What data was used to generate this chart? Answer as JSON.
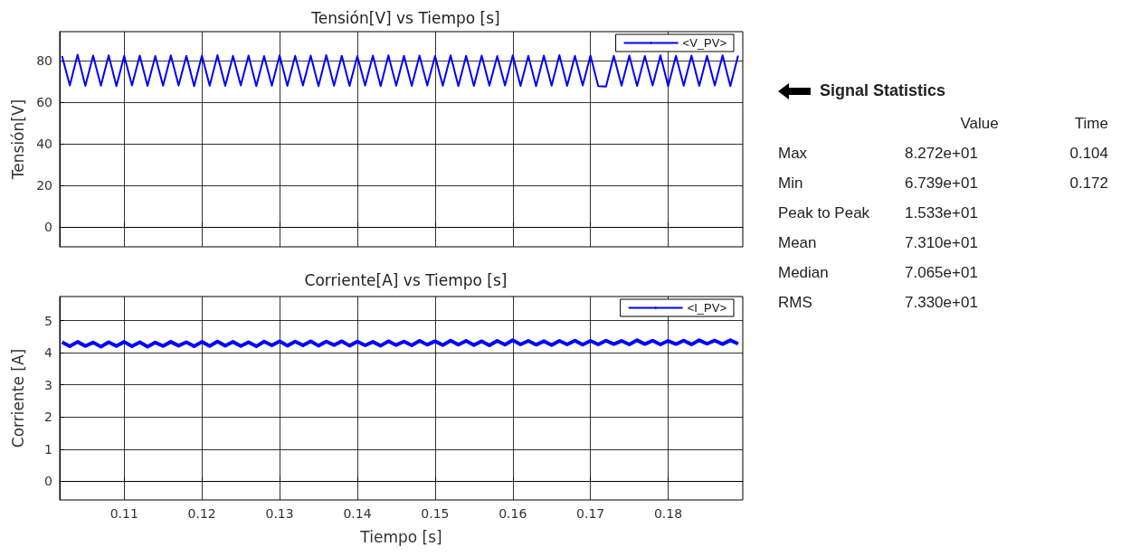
{
  "chart_data": [
    {
      "type": "line",
      "title": "Tensión[V] vs Tiempo [s]",
      "ylabel": "Tensión[V]",
      "xlim": [
        0.1017,
        0.1896
      ],
      "xticks": [
        0.11,
        0.12,
        0.13,
        0.14,
        0.15,
        0.16,
        0.17,
        0.18
      ],
      "ylim": [
        -9.6,
        93.8
      ],
      "yticks": [
        0,
        20,
        40,
        60,
        80
      ],
      "grid": true,
      "legend": "top right",
      "tick_labels": "y",
      "marker": "none",
      "x": [
        0.102,
        0.103,
        0.104,
        0.105,
        0.106,
        0.107,
        0.108,
        0.109,
        0.11,
        0.111,
        0.112,
        0.113,
        0.114,
        0.115,
        0.116,
        0.117,
        0.118,
        0.119,
        0.12,
        0.121,
        0.122,
        0.123,
        0.124,
        0.125,
        0.126,
        0.127,
        0.128,
        0.129,
        0.13,
        0.131,
        0.132,
        0.133,
        0.134,
        0.135,
        0.136,
        0.137,
        0.138,
        0.139,
        0.14,
        0.141,
        0.142,
        0.143,
        0.144,
        0.145,
        0.146,
        0.147,
        0.148,
        0.149,
        0.15,
        0.151,
        0.152,
        0.153,
        0.154,
        0.155,
        0.156,
        0.157,
        0.158,
        0.159,
        0.16,
        0.161,
        0.162,
        0.163,
        0.164,
        0.165,
        0.166,
        0.167,
        0.168,
        0.169,
        0.17,
        0.171,
        0.172,
        0.173,
        0.174,
        0.175,
        0.176,
        0.177,
        0.178,
        0.179,
        0.18,
        0.181,
        0.182,
        0.183,
        0.184,
        0.185,
        0.186,
        0.187,
        0.188,
        0.189
      ],
      "series": [
        {
          "name": "<V_PV>",
          "color": "#0000ff",
          "values": [
            82.1,
            67.9,
            82.7,
            67.7,
            82.3,
            67.8,
            82.4,
            67.6,
            82.2,
            67.9,
            82.3,
            67.7,
            82.1,
            67.8,
            82.4,
            67.9,
            82.2,
            67.6,
            82.3,
            67.8,
            82.5,
            67.7,
            82.2,
            67.9,
            82.3,
            67.6,
            82.1,
            67.8,
            82.4,
            67.7,
            82.2,
            67.9,
            82.3,
            67.6,
            82.5,
            67.8,
            82.2,
            67.7,
            82.1,
            67.9,
            82.3,
            67.6,
            82.4,
            67.8,
            82.2,
            67.7,
            82.3,
            67.9,
            82.1,
            67.8,
            82.4,
            67.6,
            82.2,
            67.7,
            82.3,
            67.8,
            82.1,
            67.9,
            82.4,
            67.7,
            82.2,
            67.6,
            82.3,
            67.8,
            82.5,
            67.7,
            82.2,
            67.9,
            82.3,
            67.6,
            67.4,
            82.2,
            67.8,
            82.3,
            67.7,
            82.1,
            67.9,
            82.4,
            67.6,
            82.2,
            67.8,
            82.3,
            67.7,
            82.2,
            67.9,
            82.4,
            67.6,
            82.3
          ]
        }
      ]
    },
    {
      "type": "line",
      "title": "Corriente[A] vs Tiempo [s]",
      "xlabel": "Tiempo [s]",
      "ylabel": "Corriente [A]",
      "xlim": [
        0.1017,
        0.1896
      ],
      "xticks": [
        0.11,
        0.12,
        0.13,
        0.14,
        0.15,
        0.16,
        0.17,
        0.18
      ],
      "ylim": [
        -0.58,
        5.75
      ],
      "yticks": [
        0,
        1,
        2,
        3,
        4,
        5
      ],
      "grid": true,
      "legend": "top right",
      "marker": "none",
      "x": [
        0.102,
        0.103,
        0.104,
        0.105,
        0.106,
        0.107,
        0.108,
        0.109,
        0.11,
        0.111,
        0.112,
        0.113,
        0.114,
        0.115,
        0.116,
        0.117,
        0.118,
        0.119,
        0.12,
        0.121,
        0.122,
        0.123,
        0.124,
        0.125,
        0.126,
        0.127,
        0.128,
        0.129,
        0.13,
        0.131,
        0.132,
        0.133,
        0.134,
        0.135,
        0.136,
        0.137,
        0.138,
        0.139,
        0.14,
        0.141,
        0.142,
        0.143,
        0.144,
        0.145,
        0.146,
        0.147,
        0.148,
        0.149,
        0.15,
        0.151,
        0.152,
        0.153,
        0.154,
        0.155,
        0.156,
        0.157,
        0.158,
        0.159,
        0.16,
        0.161,
        0.162,
        0.163,
        0.164,
        0.165,
        0.166,
        0.167,
        0.168,
        0.169,
        0.17,
        0.171,
        0.172,
        0.173,
        0.174,
        0.175,
        0.176,
        0.177,
        0.178,
        0.179,
        0.18,
        0.181,
        0.182,
        0.183,
        0.184,
        0.185,
        0.186,
        0.187,
        0.188,
        0.189
      ],
      "series": [
        {
          "name": "<I_PV>",
          "color": "#0000ff",
          "values": [
            4.33,
            4.2,
            4.34,
            4.21,
            4.32,
            4.19,
            4.33,
            4.21,
            4.34,
            4.2,
            4.33,
            4.19,
            4.32,
            4.21,
            4.34,
            4.22,
            4.33,
            4.2,
            4.34,
            4.21,
            4.35,
            4.22,
            4.34,
            4.21,
            4.33,
            4.2,
            4.35,
            4.23,
            4.36,
            4.22,
            4.35,
            4.23,
            4.36,
            4.22,
            4.35,
            4.24,
            4.36,
            4.22,
            4.35,
            4.23,
            4.34,
            4.22,
            4.36,
            4.24,
            4.35,
            4.23,
            4.37,
            4.25,
            4.36,
            4.24,
            4.38,
            4.25,
            4.37,
            4.24,
            4.36,
            4.23,
            4.37,
            4.25,
            4.39,
            4.26,
            4.37,
            4.25,
            4.36,
            4.24,
            4.37,
            4.26,
            4.38,
            4.25,
            4.37,
            4.26,
            4.38,
            4.27,
            4.37,
            4.26,
            4.39,
            4.27,
            4.38,
            4.26,
            4.37,
            4.27,
            4.38,
            4.26,
            4.39,
            4.28,
            4.38,
            4.27,
            4.39,
            4.28
          ]
        }
      ]
    },
    {
      "type": "other",
      "title": "Signal Statistics",
      "annotations": [
        "Value",
        "Time",
        "Max",
        "8.272e+01",
        "0.104",
        "Min",
        "6.739e+01",
        "0.172",
        "Peak to Peak",
        "1.533e+01",
        "Mean",
        "7.310e+01",
        "Median",
        "7.065e+01",
        "RMS",
        "7.330e+01"
      ]
    }
  ]
}
